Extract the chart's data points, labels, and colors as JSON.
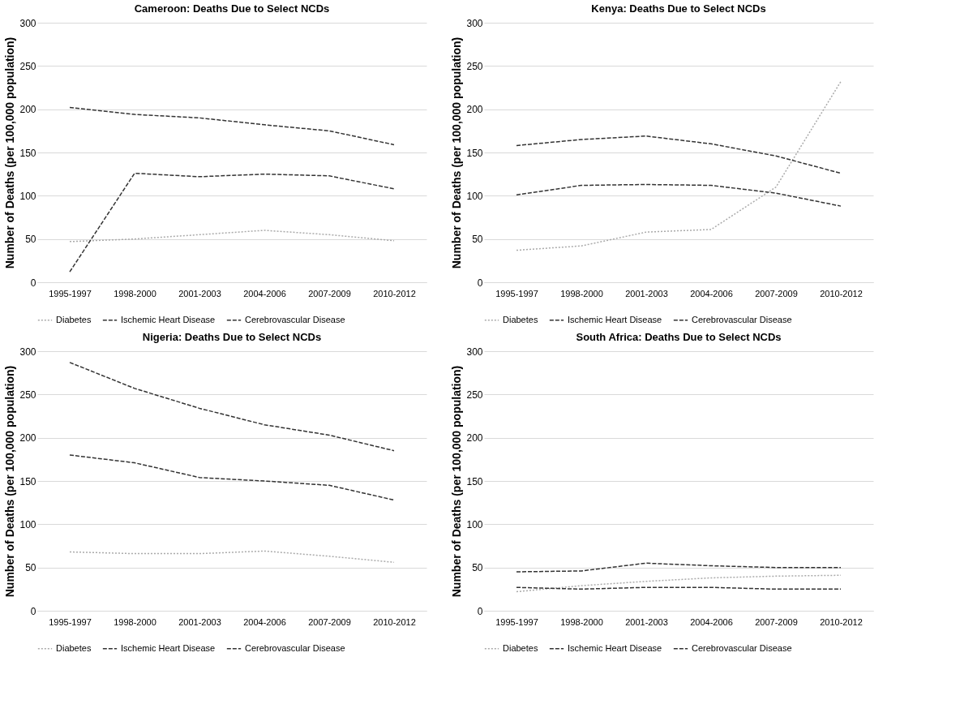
{
  "chart_data": [
    {
      "type": "line",
      "title": "Cameroon: Deaths Due to Select NCDs",
      "ylabel": "Number of Deaths (per 100,000 population)",
      "categories": [
        "1995-1997",
        "1998-2000",
        "2001-2003",
        "2004-2006",
        "2007-2009",
        "2010-2012"
      ],
      "ylim": [
        0,
        300
      ],
      "yticks": [
        0,
        50,
        100,
        150,
        200,
        250,
        300
      ],
      "grid": "y",
      "legend": "bottom",
      "marker": "none",
      "series": [
        {
          "name": "Diabetes",
          "color": "#aaaaaa",
          "line_style": "dotted",
          "values": [
            47,
            50,
            55,
            60,
            55,
            48
          ]
        },
        {
          "name": "Ischemic Heart Disease",
          "color": "#333333",
          "line_style": "dashed",
          "values": [
            202,
            194,
            190,
            182,
            175,
            159
          ]
        },
        {
          "name": "Cerebrovascular Disease",
          "color": "#333333",
          "line_style": "dashed",
          "values": [
            12,
            126,
            122,
            125,
            123,
            108
          ]
        }
      ]
    },
    {
      "type": "line",
      "title": "Kenya: Deaths Due to Select NCDs",
      "ylabel": "Number of Deaths (per 100,000 population)",
      "categories": [
        "1995-1997",
        "1998-2000",
        "2001-2003",
        "2004-2006",
        "2007-2009",
        "2010-2012"
      ],
      "ylim": [
        0,
        300
      ],
      "yticks": [
        0,
        50,
        100,
        150,
        200,
        250,
        300
      ],
      "grid": "y",
      "legend": "bottom",
      "marker": "none",
      "series": [
        {
          "name": "Diabetes",
          "color": "#aaaaaa",
          "line_style": "dotted",
          "values": [
            37,
            42,
            58,
            61,
            110,
            232
          ]
        },
        {
          "name": "Ischemic Heart Disease",
          "color": "#333333",
          "line_style": "dashed",
          "values": [
            158,
            165,
            169,
            160,
            146,
            126
          ]
        },
        {
          "name": "Cerebrovascular Disease",
          "color": "#333333",
          "line_style": "dashed",
          "values": [
            101,
            112,
            113,
            112,
            103,
            88
          ]
        }
      ]
    },
    {
      "type": "line",
      "title": "Nigeria: Deaths Due to Select NCDs",
      "ylabel": "Number of Deaths (per 100,000 population)",
      "categories": [
        "1995-1997",
        "1998-2000",
        "2001-2003",
        "2004-2006",
        "2007-2009",
        "2010-2012"
      ],
      "ylim": [
        0,
        300
      ],
      "yticks": [
        0,
        50,
        100,
        150,
        200,
        250,
        300
      ],
      "grid": "y",
      "legend": "bottom",
      "marker": "none",
      "series": [
        {
          "name": "Diabetes",
          "color": "#aaaaaa",
          "line_style": "dotted",
          "values": [
            68,
            66,
            66,
            69,
            63,
            56
          ]
        },
        {
          "name": "Ischemic Heart Disease",
          "color": "#333333",
          "line_style": "dashed",
          "values": [
            287,
            257,
            234,
            215,
            203,
            185
          ]
        },
        {
          "name": "Cerebrovascular Disease",
          "color": "#333333",
          "line_style": "dashed",
          "values": [
            180,
            171,
            154,
            150,
            145,
            128
          ]
        }
      ]
    },
    {
      "type": "line",
      "title": "South Africa: Deaths Due to Select NCDs",
      "ylabel": "Number of Deaths (per 100,000 population)",
      "categories": [
        "1995-1997",
        "1998-2000",
        "2001-2003",
        "2004-2006",
        "2007-2009",
        "2010-2012"
      ],
      "ylim": [
        0,
        300
      ],
      "yticks": [
        0,
        50,
        100,
        150,
        200,
        250,
        300
      ],
      "grid": "y",
      "legend": "bottom",
      "marker": "none",
      "series": [
        {
          "name": "Diabetes",
          "color": "#aaaaaa",
          "line_style": "dotted",
          "values": [
            22,
            29,
            34,
            38,
            40,
            41
          ]
        },
        {
          "name": "Ischemic Heart Disease",
          "color": "#333333",
          "line_style": "dashed",
          "values": [
            27,
            25,
            27,
            27,
            25,
            25
          ]
        },
        {
          "name": "Cerebrovascular Disease",
          "color": "#333333",
          "line_style": "dashed",
          "values": [
            45,
            46,
            55,
            52,
            50,
            50
          ]
        }
      ]
    }
  ]
}
